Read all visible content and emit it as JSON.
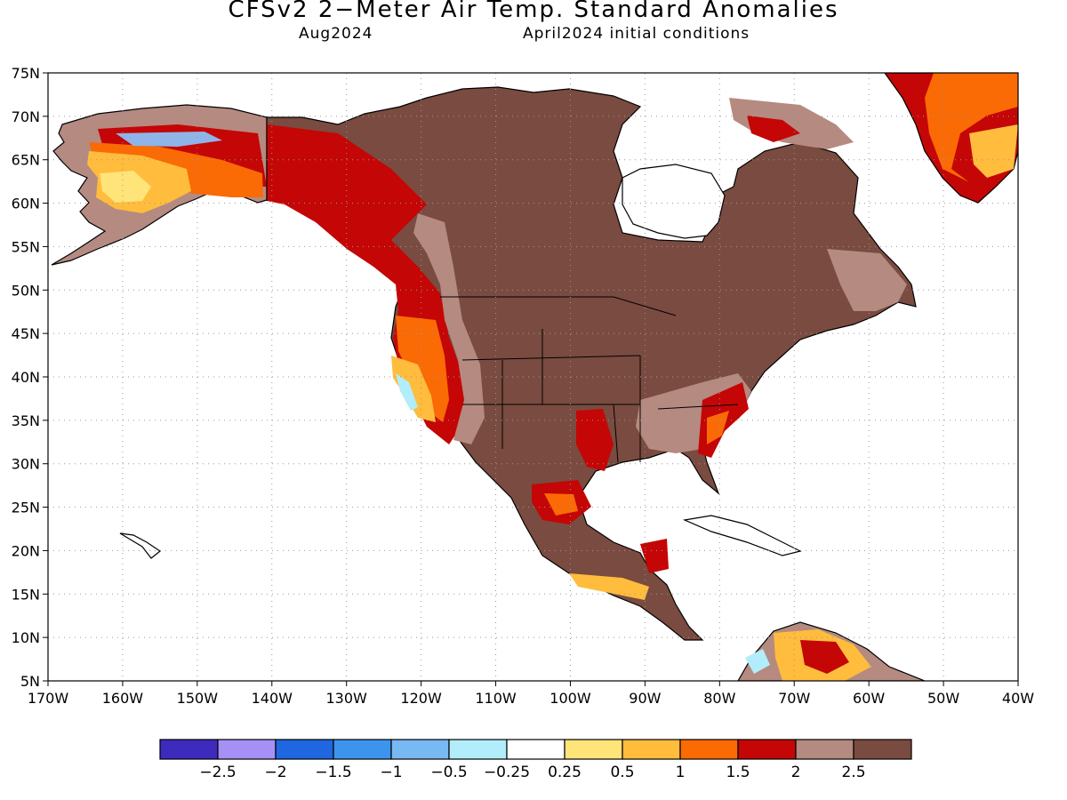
{
  "title": "CFSv2 2−Meter Air Temp. Standard Anomalies",
  "subtitle_left": "Aug2024",
  "subtitle_right": "April2024 initial conditions",
  "lat_labels": [
    "75N",
    "70N",
    "65N",
    "60N",
    "55N",
    "50N",
    "45N",
    "40N",
    "35N",
    "30N",
    "25N",
    "20N",
    "15N",
    "10N",
    "5N"
  ],
  "lon_labels": [
    "170W",
    "160W",
    "150W",
    "140W",
    "130W",
    "120W",
    "110W",
    "100W",
    "90W",
    "80W",
    "70W",
    "60W",
    "50W",
    "40W"
  ],
  "legend": {
    "colors": [
      "#3e2bbd",
      "#a591f5",
      "#1f66e0",
      "#3d94ed",
      "#79b9f3",
      "#b1edfa",
      "#ffffff",
      "#ffe47a",
      "#ffbc3d",
      "#fa6a05",
      "#c40606",
      "#b58a80",
      "#7a4b40"
    ],
    "labels": [
      "−2.5",
      "−2",
      "−1.5",
      "−1",
      "−0.5",
      "−0.25",
      "0.25",
      "0.5",
      "1",
      "1.5",
      "2",
      "2.5"
    ]
  }
}
